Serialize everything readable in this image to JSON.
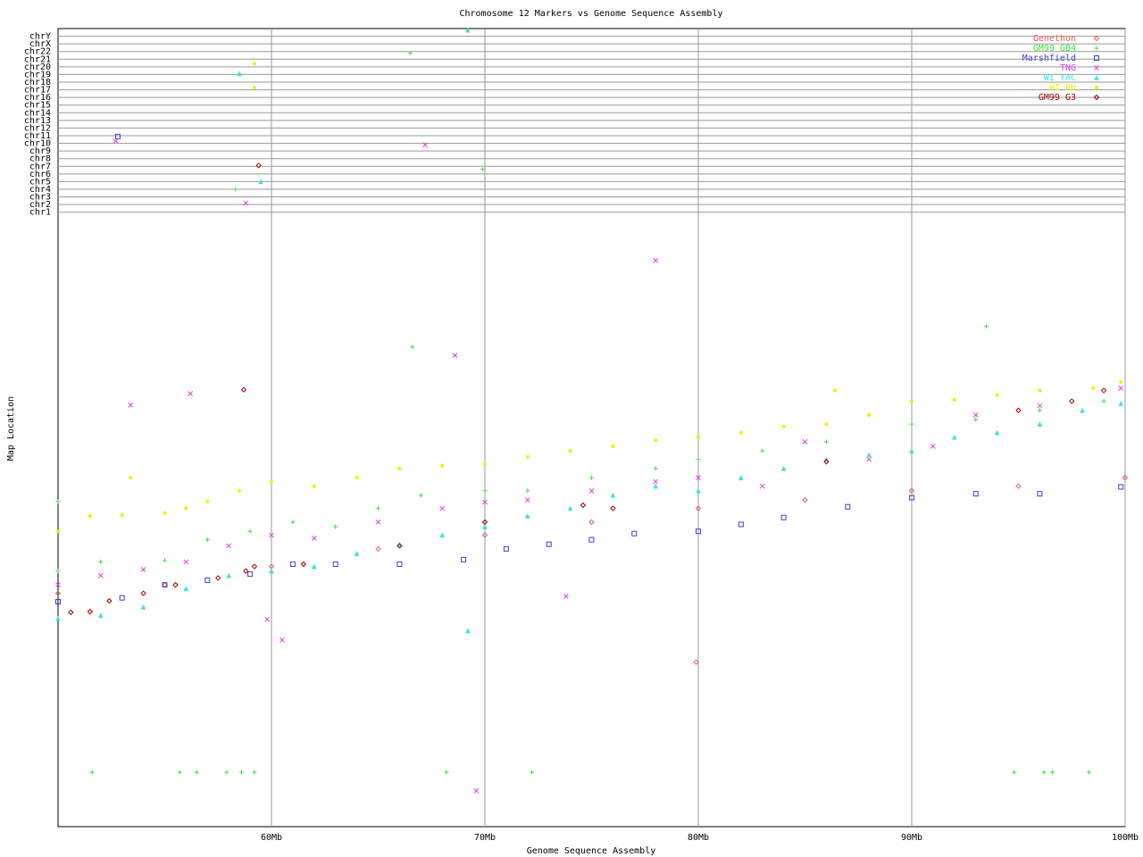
{
  "chart_data": {
    "type": "scatter",
    "title": "Chromosome 12 Markers vs Genome Sequence Assembly",
    "xlabel": "Genome Sequence Assembly",
    "ylabel": "Map Location",
    "xlim": [
      50,
      100
    ],
    "ylim": [
      -79.3,
      25.0
    ],
    "xticks": [
      {
        "value": 60,
        "label": "60Mb"
      },
      {
        "value": 70,
        "label": "70Mb"
      },
      {
        "value": 80,
        "label": "80Mb"
      },
      {
        "value": 90,
        "label": "90Mb"
      },
      {
        "value": 100,
        "label": "100Mb"
      }
    ],
    "yticks": [
      {
        "value": 1,
        "label": "chr1"
      },
      {
        "value": 2,
        "label": "chr2"
      },
      {
        "value": 3,
        "label": "chr3"
      },
      {
        "value": 4,
        "label": "chr4"
      },
      {
        "value": 5,
        "label": "chr5"
      },
      {
        "value": 6,
        "label": "chr6"
      },
      {
        "value": 7,
        "label": "chr7"
      },
      {
        "value": 8,
        "label": "chr8"
      },
      {
        "value": 9,
        "label": "chr9"
      },
      {
        "value": 10,
        "label": "chr10"
      },
      {
        "value": 11,
        "label": "chr11"
      },
      {
        "value": 12,
        "label": "chr12"
      },
      {
        "value": 13,
        "label": "chr13"
      },
      {
        "value": 14,
        "label": "chr14"
      },
      {
        "value": 15,
        "label": "chr15"
      },
      {
        "value": 16,
        "label": "chr16"
      },
      {
        "value": 17,
        "label": "chr17"
      },
      {
        "value": 18,
        "label": "chr18"
      },
      {
        "value": 19,
        "label": "chr19"
      },
      {
        "value": 20,
        "label": "chr20"
      },
      {
        "value": 21,
        "label": "chr21"
      },
      {
        "value": 22,
        "label": "chr22"
      },
      {
        "value": 23,
        "label": "chrX"
      },
      {
        "value": 24,
        "label": "chrY"
      }
    ],
    "grid": true,
    "legend": "upper right",
    "series": [
      {
        "name": "Genethon",
        "color": "#e06060",
        "marker": "diamond",
        "x": [
          50,
          55,
          60,
          65,
          70,
          75,
          80,
          85,
          90,
          95,
          100,
          79.9
        ],
        "values": [
          -48.8,
          -47.7,
          -45.3,
          -43.0,
          -41.2,
          -39.5,
          -37.7,
          -36.6,
          -35.4,
          -34.8,
          -33.7,
          -57.8
        ]
      },
      {
        "name": "GM99 GB4",
        "color": "#40e040",
        "marker": "plus",
        "x": [
          50,
          52,
          55,
          57,
          59,
          61,
          63,
          65,
          67,
          70,
          72,
          75,
          78,
          80,
          83,
          86,
          90,
          93,
          96,
          99,
          51.6,
          55.7,
          56.5,
          57.9,
          58.6,
          59.2,
          68.2,
          72.2,
          94.8,
          96.2,
          96.6,
          98.3,
          58.3,
          69.9,
          66.5,
          93.5,
          66.6,
          50
        ],
        "values": [
          -45.9,
          -44.7,
          -44.5,
          -41.8,
          -40.7,
          -39.5,
          -40.1,
          -37.7,
          -36.0,
          -35.4,
          -35.4,
          -33.7,
          -32.5,
          -31.3,
          -30.2,
          -29.0,
          -26.7,
          -26.1,
          -24.9,
          -23.7,
          -72.2,
          -72.2,
          -72.2,
          -72.2,
          -72.2,
          -72.2,
          -72.2,
          -72.2,
          -72.2,
          -72.2,
          -72.2,
          -72.2,
          4.0,
          6.6,
          21.8,
          -13.9,
          -16.6,
          -36.8
        ]
      },
      {
        "name": "Marshfield",
        "color": "#4040d0",
        "marker": "square",
        "x": [
          50,
          53,
          55,
          57,
          59,
          61,
          63,
          66,
          69,
          71,
          73,
          75,
          77,
          80,
          82,
          84,
          87,
          90,
          93,
          96,
          99.8,
          52.8
        ],
        "values": [
          -49.9,
          -49.4,
          -47.7,
          -47.1,
          -46.3,
          -45.0,
          -45.0,
          -45.0,
          -44.4,
          -43.0,
          -42.4,
          -41.8,
          -41.0,
          -40.7,
          -39.8,
          -38.9,
          -37.5,
          -36.3,
          -35.8,
          -35.8,
          -34.9,
          10.9
        ]
      },
      {
        "name": "TNG",
        "color": "#e040e0",
        "marker": "x",
        "x": [
          50,
          52,
          54,
          56,
          58,
          60,
          62,
          65,
          68,
          70,
          72,
          75,
          78,
          80,
          83,
          85,
          88,
          91,
          93,
          96,
          99.8,
          53.4,
          56.2,
          68.6,
          78.0,
          59.8,
          60.5,
          69.6,
          73.8,
          52.7,
          67.2,
          58.8
        ],
        "values": [
          -47.7,
          -46.5,
          -45.7,
          -44.7,
          -42.6,
          -41.2,
          -41.6,
          -39.5,
          -37.7,
          -36.9,
          -36.6,
          -35.4,
          -34.2,
          -33.7,
          -34.8,
          -29.0,
          -31.3,
          -29.6,
          -25.5,
          -24.3,
          -22.0,
          -24.2,
          -22.7,
          -17.7,
          -5.3,
          -52.2,
          -54.9,
          -74.6,
          -49.2,
          10.3,
          9.8,
          2.2
        ]
      },
      {
        "name": "WI YAC",
        "color": "#40e0e0",
        "marker": "triangle",
        "x": [
          50,
          52,
          54,
          56,
          58,
          60,
          62,
          64,
          66,
          68,
          70,
          72,
          74,
          76,
          78,
          80,
          82,
          84,
          86,
          88,
          90,
          92,
          94,
          96,
          98,
          99.8,
          69.2,
          58.5,
          59.5,
          69.2
        ],
        "values": [
          -52.1,
          -51.7,
          -50.6,
          -48.2,
          -46.5,
          -45.9,
          -45.3,
          -43.6,
          -42.4,
          -41.2,
          -40.1,
          -38.7,
          -37.7,
          -36.0,
          -34.8,
          -35.4,
          -33.7,
          -32.5,
          -31.3,
          -30.7,
          -30.2,
          -28.4,
          -27.8,
          -26.7,
          -24.9,
          -24.0,
          24.8,
          19.1,
          5.0,
          -53.7
        ]
      },
      {
        "name": "WI RH",
        "color": "#f0f000",
        "marker": "circle",
        "x": [
          50,
          51.5,
          53,
          55,
          56,
          57,
          58.5,
          60,
          62,
          64,
          66,
          68,
          70,
          72,
          74,
          76,
          78,
          80,
          82,
          84,
          86,
          88,
          90,
          92,
          94,
          96,
          98.5,
          99.8,
          59.2,
          59.2,
          53.4,
          86.4
        ],
        "values": [
          -40.7,
          -38.7,
          -38.6,
          -38.3,
          -37.7,
          -36.8,
          -35.4,
          -34.2,
          -34.8,
          -33.7,
          -32.5,
          -32.1,
          -31.9,
          -31.0,
          -30.2,
          -29.6,
          -28.8,
          -28.4,
          -27.8,
          -27.0,
          -26.7,
          -25.5,
          -23.7,
          -23.5,
          -22.9,
          -22.3,
          -22.0,
          -21.2,
          20.4,
          17.3,
          -33.7,
          -22.3
        ]
      },
      {
        "name": "GM99 G3",
        "color": "#a00000",
        "marker": "diamond",
        "x": [
          50.6,
          51.5,
          52.4,
          54,
          55.5,
          57.5,
          58.8,
          59.2,
          61.5,
          66,
          70,
          74.6,
          76,
          58.7,
          59.4,
          86,
          95,
          97.5,
          99
        ],
        "values": [
          -51.3,
          -51.2,
          -49.8,
          -48.8,
          -47.7,
          -46.8,
          -45.9,
          -45.3,
          -45.0,
          -42.6,
          -39.5,
          -37.3,
          -37.7,
          -22.2,
          7.1,
          -31.6,
          -24.9,
          -23.7,
          -22.3
        ]
      }
    ]
  }
}
